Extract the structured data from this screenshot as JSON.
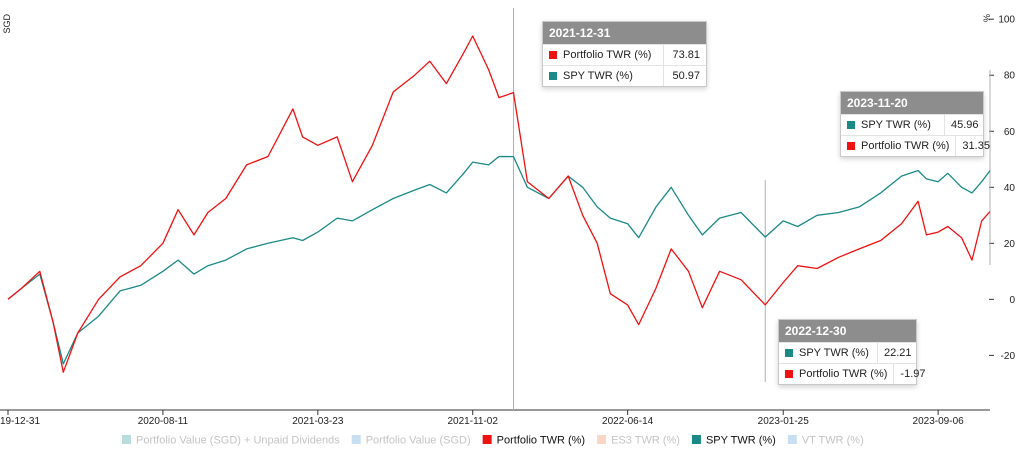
{
  "chart_data": {
    "type": "line",
    "left_axis_label": "SGD",
    "right_axis_label": "%",
    "y_ticks": [
      100,
      80,
      60,
      40,
      20,
      0,
      -20
    ],
    "ylim": [
      -39.5,
      104
    ],
    "x_range": [
      "2019-12-31",
      "2023-11-20"
    ],
    "x_ticks": [
      {
        "date": "2019-12-31",
        "label": "19-12-31"
      },
      {
        "date": "2020-08-11",
        "label": "2020-08-11"
      },
      {
        "date": "2021-03-23",
        "label": "2021-03-23"
      },
      {
        "date": "2021-11-02",
        "label": "2021-11-02"
      },
      {
        "date": "2022-06-14",
        "label": "2022-06-14"
      },
      {
        "date": "2023-01-25",
        "label": "2023-01-25"
      },
      {
        "date": "2023-09-06",
        "label": "2023-09-06"
      }
    ],
    "legend": [
      {
        "label": "Portfolio Value (SGD) + Unpaid Dividends",
        "color": "#b9dcdc",
        "active": false
      },
      {
        "label": "Portfolio Value (SGD)",
        "color": "#c7dff0",
        "active": false
      },
      {
        "label": "Portfolio TWR (%)",
        "color": "#ee1111",
        "active": true
      },
      {
        "label": "ES3 TWR (%)",
        "color": "#fbd6c6",
        "active": false
      },
      {
        "label": "SPY TWR (%)",
        "color": "#1b8a87",
        "active": true
      },
      {
        "label": "VT TWR (%)",
        "color": "#c7dff0",
        "active": false
      }
    ],
    "series": [
      {
        "name": "Portfolio TWR (%)",
        "color": "#ee1111",
        "points": [
          [
            "2019-12-31",
            0
          ],
          [
            "2020-01-20",
            4
          ],
          [
            "2020-02-15",
            10
          ],
          [
            "2020-03-05",
            -8
          ],
          [
            "2020-03-20",
            -26
          ],
          [
            "2020-04-10",
            -12
          ],
          [
            "2020-05-10",
            0
          ],
          [
            "2020-06-10",
            8
          ],
          [
            "2020-07-10",
            12
          ],
          [
            "2020-08-11",
            20
          ],
          [
            "2020-09-02",
            32
          ],
          [
            "2020-09-25",
            23
          ],
          [
            "2020-10-15",
            31
          ],
          [
            "2020-11-10",
            36
          ],
          [
            "2020-12-10",
            48
          ],
          [
            "2021-01-10",
            51
          ],
          [
            "2021-02-15",
            68
          ],
          [
            "2021-03-01",
            58
          ],
          [
            "2021-03-23",
            55
          ],
          [
            "2021-04-20",
            58
          ],
          [
            "2021-05-12",
            42
          ],
          [
            "2021-06-10",
            55
          ],
          [
            "2021-07-10",
            74
          ],
          [
            "2021-08-10",
            80
          ],
          [
            "2021-09-01",
            85
          ],
          [
            "2021-09-25",
            77
          ],
          [
            "2021-10-20",
            88
          ],
          [
            "2021-11-02",
            94
          ],
          [
            "2021-11-25",
            82
          ],
          [
            "2021-12-10",
            72
          ],
          [
            "2021-12-31",
            73.81
          ],
          [
            "2022-01-20",
            42
          ],
          [
            "2022-02-20",
            36
          ],
          [
            "2022-03-20",
            44
          ],
          [
            "2022-04-10",
            30
          ],
          [
            "2022-05-01",
            20
          ],
          [
            "2022-05-20",
            2
          ],
          [
            "2022-06-14",
            -2
          ],
          [
            "2022-06-30",
            -9
          ],
          [
            "2022-07-25",
            4
          ],
          [
            "2022-08-16",
            18
          ],
          [
            "2022-09-10",
            10
          ],
          [
            "2022-09-30",
            -3
          ],
          [
            "2022-10-25",
            10
          ],
          [
            "2022-11-25",
            7
          ],
          [
            "2022-12-30",
            -1.97
          ],
          [
            "2023-01-25",
            6
          ],
          [
            "2023-02-15",
            12
          ],
          [
            "2023-03-15",
            11
          ],
          [
            "2023-04-15",
            15
          ],
          [
            "2023-05-15",
            18
          ],
          [
            "2023-06-15",
            21
          ],
          [
            "2023-07-15",
            27
          ],
          [
            "2023-08-08",
            35
          ],
          [
            "2023-08-20",
            23
          ],
          [
            "2023-09-06",
            24
          ],
          [
            "2023-09-20",
            26
          ],
          [
            "2023-10-10",
            22
          ],
          [
            "2023-10-25",
            14
          ],
          [
            "2023-11-08",
            28
          ],
          [
            "2023-11-20",
            31.35
          ]
        ]
      },
      {
        "name": "SPY TWR (%)",
        "color": "#1b8a87",
        "points": [
          [
            "2019-12-31",
            0
          ],
          [
            "2020-01-20",
            4
          ],
          [
            "2020-02-15",
            9
          ],
          [
            "2020-03-05",
            -8
          ],
          [
            "2020-03-20",
            -23
          ],
          [
            "2020-04-10",
            -12
          ],
          [
            "2020-05-10",
            -6
          ],
          [
            "2020-06-10",
            3
          ],
          [
            "2020-07-10",
            5
          ],
          [
            "2020-08-11",
            10
          ],
          [
            "2020-09-02",
            14
          ],
          [
            "2020-09-25",
            9
          ],
          [
            "2020-10-15",
            12
          ],
          [
            "2020-11-10",
            14
          ],
          [
            "2020-12-10",
            18
          ],
          [
            "2021-01-10",
            20
          ],
          [
            "2021-02-15",
            22
          ],
          [
            "2021-03-01",
            21
          ],
          [
            "2021-03-23",
            24
          ],
          [
            "2021-04-20",
            29
          ],
          [
            "2021-05-12",
            28
          ],
          [
            "2021-06-10",
            32
          ],
          [
            "2021-07-10",
            36
          ],
          [
            "2021-08-10",
            39
          ],
          [
            "2021-09-01",
            41
          ],
          [
            "2021-09-25",
            38
          ],
          [
            "2021-10-20",
            45
          ],
          [
            "2021-11-02",
            49
          ],
          [
            "2021-11-25",
            48
          ],
          [
            "2021-12-10",
            51
          ],
          [
            "2021-12-31",
            50.97
          ],
          [
            "2022-01-20",
            40
          ],
          [
            "2022-02-20",
            36
          ],
          [
            "2022-03-20",
            44
          ],
          [
            "2022-04-10",
            40
          ],
          [
            "2022-05-01",
            33
          ],
          [
            "2022-05-20",
            29
          ],
          [
            "2022-06-14",
            27
          ],
          [
            "2022-06-30",
            22
          ],
          [
            "2022-07-25",
            33
          ],
          [
            "2022-08-16",
            40
          ],
          [
            "2022-09-10",
            30
          ],
          [
            "2022-09-30",
            23
          ],
          [
            "2022-10-25",
            29
          ],
          [
            "2022-11-25",
            31
          ],
          [
            "2022-12-30",
            22.21
          ],
          [
            "2023-01-25",
            28
          ],
          [
            "2023-02-15",
            26
          ],
          [
            "2023-03-15",
            30
          ],
          [
            "2023-04-15",
            31
          ],
          [
            "2023-05-15",
            33
          ],
          [
            "2023-06-15",
            38
          ],
          [
            "2023-07-15",
            44
          ],
          [
            "2023-08-08",
            46
          ],
          [
            "2023-08-20",
            43
          ],
          [
            "2023-09-06",
            42
          ],
          [
            "2023-09-20",
            45
          ],
          [
            "2023-10-10",
            40
          ],
          [
            "2023-10-25",
            38
          ],
          [
            "2023-11-08",
            42
          ],
          [
            "2023-11-20",
            45.96
          ]
        ]
      }
    ],
    "crosshairs": [
      "2021-12-31",
      "2022-12-30",
      "2023-11-20"
    ]
  },
  "tooltips": [
    {
      "date": "2021-12-31",
      "rows": [
        {
          "label": "Portfolio TWR (%)",
          "value": "73.81",
          "color": "#ee1111"
        },
        {
          "label": "SPY TWR (%)",
          "value": "50.97",
          "color": "#1b8a87"
        }
      ]
    },
    {
      "date": "2023-11-20",
      "rows": [
        {
          "label": "SPY TWR (%)",
          "value": "45.96",
          "color": "#1b8a87"
        },
        {
          "label": "Portfolio TWR (%)",
          "value": "31.35",
          "color": "#ee1111"
        }
      ]
    },
    {
      "date": "2022-12-30",
      "rows": [
        {
          "label": "SPY TWR (%)",
          "value": "22.21",
          "color": "#1b8a87"
        },
        {
          "label": "Portfolio TWR (%)",
          "value": "-1.97",
          "color": "#ee1111"
        }
      ]
    }
  ]
}
